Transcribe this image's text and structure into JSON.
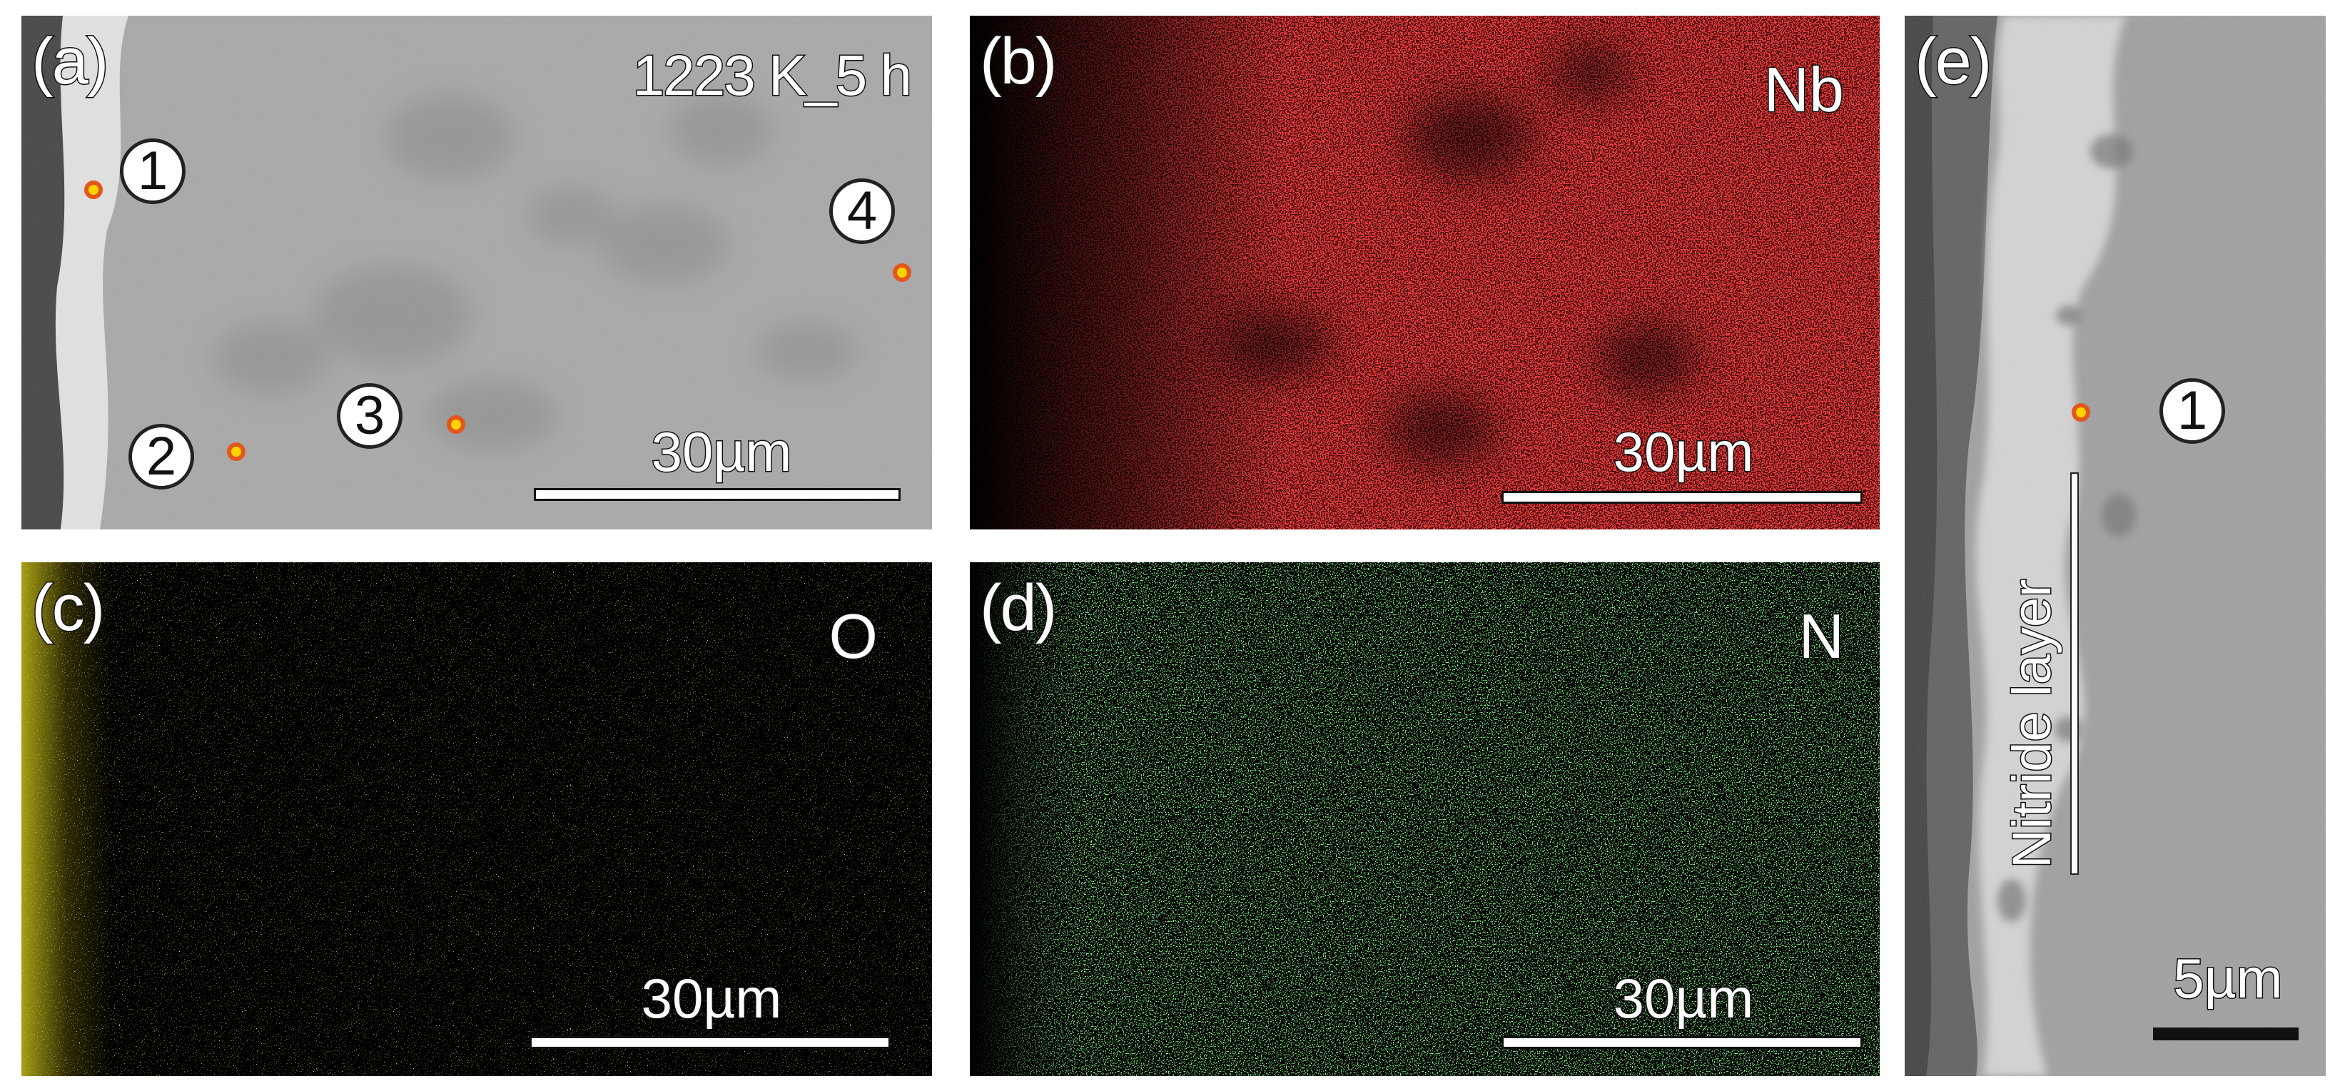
{
  "figure": {
    "panels": [
      {
        "id": "a",
        "label": "(a)",
        "title": "1223 K_5 h",
        "scale_bar": "30µm"
      },
      {
        "id": "b",
        "label": "(b)",
        "element": "Nb",
        "scale_bar": "30µm",
        "color": "#ff1a1a"
      },
      {
        "id": "c",
        "label": "(c)",
        "element": "O",
        "scale_bar": "30µm",
        "color": "#e0d21a"
      },
      {
        "id": "d",
        "label": "(d)",
        "element": "N",
        "scale_bar": "30µm",
        "color": "#2fd12f"
      },
      {
        "id": "e",
        "label": "(e)",
        "annotation": "Nitride layer",
        "scale_bar": "5µm"
      }
    ],
    "points_a": [
      "1",
      "2",
      "3",
      "4"
    ],
    "points_e": [
      "1"
    ],
    "marker_color": "#e2571e",
    "marker_fill": "#ffd400"
  }
}
